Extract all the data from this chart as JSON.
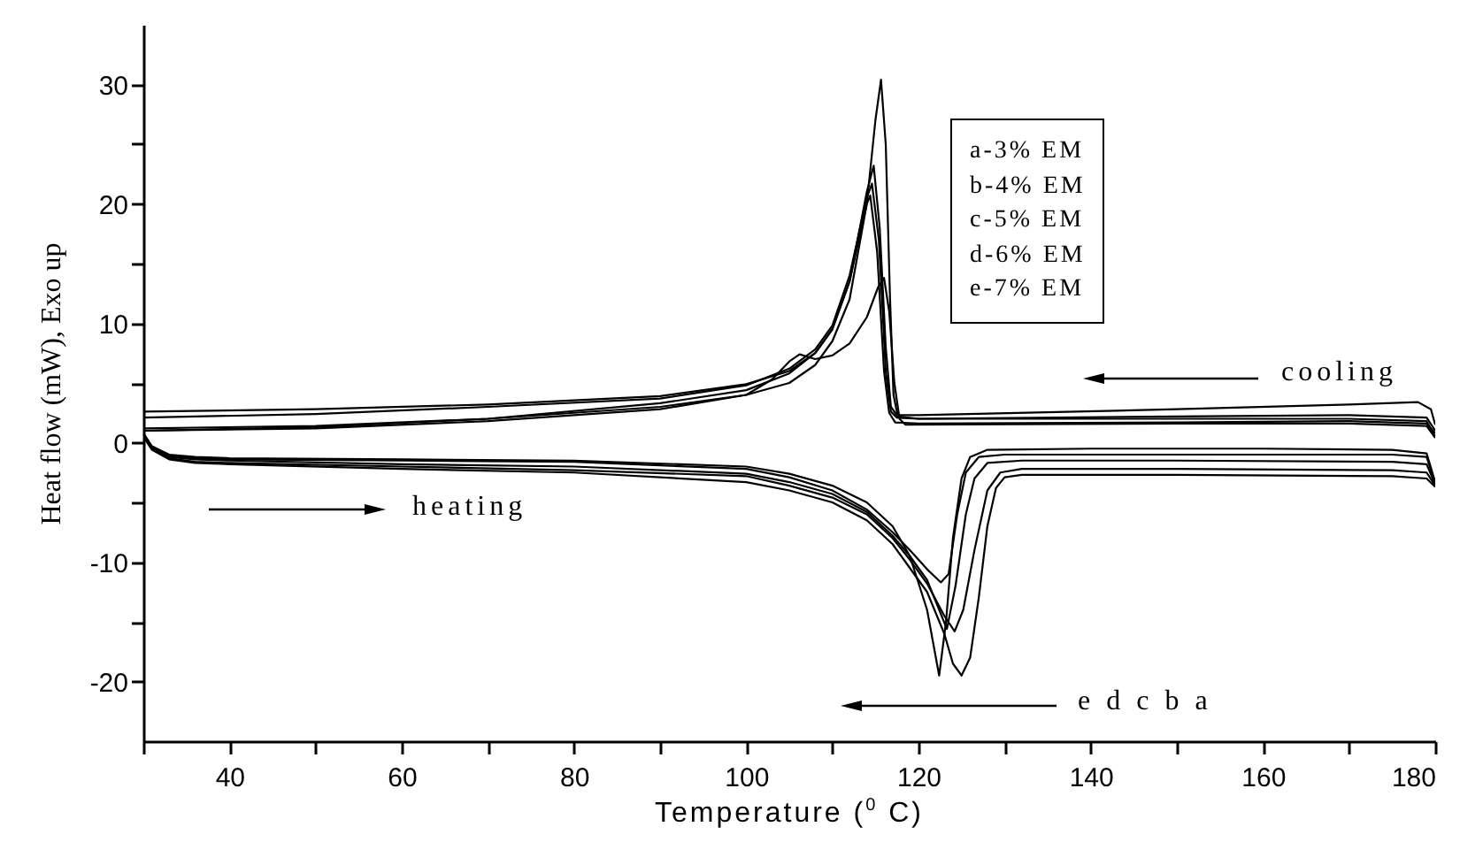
{
  "chart_data": {
    "type": "line",
    "xlabel": "Temperature ($^{0}$ C)",
    "ylabel": "Heat flow (mW), Exo up",
    "xlim": [
      30,
      180
    ],
    "ylim": [
      -25,
      35
    ],
    "xticks": [
      {
        "value": 30,
        "label": null
      },
      40,
      {
        "value": 50,
        "label": null
      },
      60,
      {
        "value": 70,
        "label": null
      },
      80,
      {
        "value": 90,
        "label": null
      },
      100,
      {
        "value": 110,
        "label": null
      },
      120,
      {
        "value": 130,
        "label": null
      },
      140,
      {
        "value": 150,
        "label": null
      },
      160,
      {
        "value": 170,
        "label": null
      },
      180
    ],
    "yticks": [
      -20,
      {
        "value": -15,
        "label": null
      },
      -10,
      {
        "value": -5,
        "label": null
      },
      0,
      {
        "value": 5,
        "label": null
      },
      10,
      {
        "value": 15,
        "label": null
      },
      20,
      {
        "value": 25,
        "label": null
      },
      30
    ],
    "grid": false,
    "marker": "none",
    "line_style": "solid",
    "annotations": [
      "a-3% EM",
      "b-4% EM",
      "c-5% EM",
      "d-6% EM",
      "e-7% EM",
      "cooling",
      "heating",
      "e d c b a"
    ],
    "series": [
      {
        "color": "#000000",
        "x": [
          30,
          31,
          33,
          36,
          40,
          60,
          80,
          100,
          105,
          110,
          114,
          117,
          119,
          121,
          122.4,
          123.2,
          124,
          125,
          126,
          128,
          140,
          160,
          175,
          179,
          180
        ],
        "values": [
          0.8,
          -0.3,
          -1.0,
          -1.2,
          -1.3,
          -1.4,
          -1.5,
          -2.0,
          -2.6,
          -3.6,
          -5.0,
          -7.0,
          -9.5,
          -14.0,
          -19.5,
          -15,
          -8,
          -3,
          -1.2,
          -0.6,
          -0.5,
          -0.5,
          -0.6,
          -0.9,
          -3.3
        ]
      },
      {
        "color": "#000000",
        "x": [
          30,
          31,
          33,
          36,
          40,
          60,
          80,
          100,
          105,
          110,
          114,
          117,
          119,
          121,
          122.6,
          123.5,
          124.5,
          125.5,
          127,
          130,
          150,
          175,
          179,
          180
        ],
        "values": [
          0.7,
          -0.4,
          -1.1,
          -1.3,
          -1.4,
          -1.5,
          -1.6,
          -2.2,
          -2.9,
          -4.0,
          -5.6,
          -7.5,
          -9.0,
          -10.6,
          -11.7,
          -11,
          -6,
          -2.5,
          -1.2,
          -1.0,
          -1.0,
          -1.0,
          -1.2,
          -3.4
        ]
      },
      {
        "color": "#000000",
        "x": [
          30,
          31,
          33,
          36,
          40,
          60,
          80,
          100,
          105,
          110,
          114,
          117,
          119,
          121,
          123.3,
          124.3,
          125.5,
          126.5,
          128,
          132,
          150,
          175,
          179,
          180
        ],
        "values": [
          0.6,
          -0.5,
          -1.2,
          -1.4,
          -1.5,
          -1.8,
          -2.0,
          -2.6,
          -3.3,
          -4.3,
          -5.8,
          -7.8,
          -9.5,
          -11.5,
          -15.6,
          -12,
          -6,
          -3,
          -1.7,
          -1.5,
          -1.5,
          -1.6,
          -1.8,
          -3.5
        ]
      },
      {
        "color": "#000000",
        "x": [
          30,
          31,
          33,
          36,
          40,
          60,
          80,
          100,
          105,
          110,
          114,
          117,
          119,
          121,
          123,
          124.2,
          125.2,
          126.5,
          128,
          129.5,
          132,
          150,
          175,
          179,
          180
        ],
        "values": [
          0.6,
          -0.5,
          -1.3,
          -1.6,
          -1.7,
          -2.0,
          -2.3,
          -2.8,
          -3.6,
          -4.6,
          -6.0,
          -8.0,
          -9.8,
          -11.8,
          -14.5,
          -15.8,
          -14,
          -9,
          -4,
          -2.5,
          -2.2,
          -2.2,
          -2.3,
          -2.5,
          -3.6
        ]
      },
      {
        "color": "#000000",
        "x": [
          30,
          31,
          33,
          36,
          40,
          60,
          80,
          100,
          105,
          110,
          114,
          117,
          119,
          121,
          123,
          124,
          125,
          126,
          127,
          128,
          129,
          130,
          132,
          150,
          175,
          179,
          180
        ],
        "values": [
          0.5,
          -0.6,
          -1.4,
          -1.7,
          -1.8,
          -2.2,
          -2.5,
          -3.3,
          -4.0,
          -5.0,
          -6.5,
          -8.5,
          -10.5,
          -12.5,
          -16,
          -18.5,
          -19.5,
          -18,
          -13,
          -7,
          -3.8,
          -2.9,
          -2.7,
          -2.7,
          -2.8,
          -3.0,
          -3.7
        ]
      },
      {
        "color": "#000000",
        "x": [
          30,
          50,
          70,
          90,
          100,
          105,
          108,
          110,
          112,
          114,
          115,
          115.65,
          116.2,
          116.7,
          117.1,
          117.6,
          120,
          150,
          170,
          179,
          180
        ],
        "values": [
          1.2,
          1.4,
          2.0,
          3.0,
          4.0,
          5.0,
          6.5,
          8.5,
          12,
          20,
          27,
          30.4,
          25,
          12,
          4,
          2.2,
          2.0,
          2.0,
          2.0,
          1.8,
          0.5
        ]
      },
      {
        "color": "#000000",
        "x": [
          30,
          50,
          70,
          90,
          100,
          105,
          108,
          110,
          112,
          114,
          114.8,
          115.5,
          116.2,
          116.8,
          117.5,
          120,
          150,
          170,
          178,
          179.5,
          180
        ],
        "values": [
          2.6,
          2.8,
          3.2,
          3.9,
          4.9,
          6.0,
          7.5,
          9.5,
          13.5,
          21,
          23.2,
          18,
          8,
          3,
          2.3,
          2.3,
          2.8,
          3.2,
          3.4,
          2.8,
          1.5
        ]
      },
      {
        "color": "#000000",
        "x": [
          30,
          50,
          70,
          90,
          100,
          105,
          108,
          110,
          112,
          114,
          114.6,
          115.4,
          116.2,
          116.8,
          117.5,
          120,
          150,
          170,
          179,
          180
        ],
        "values": [
          2.1,
          2.4,
          3.0,
          3.7,
          4.8,
          6.2,
          7.8,
          9.8,
          14,
          20.5,
          21.7,
          17,
          6,
          2.6,
          2.1,
          2.0,
          2.2,
          2.3,
          2.1,
          1.0
        ]
      },
      {
        "color": "#000000",
        "x": [
          30,
          50,
          70,
          90,
          100,
          105,
          108,
          110,
          112,
          114,
          114.4,
          115.2,
          116,
          116.6,
          117.3,
          120,
          150,
          170,
          179,
          180
        ],
        "values": [
          1.0,
          1.3,
          2.0,
          3.3,
          4.4,
          5.8,
          7.5,
          9.5,
          13.5,
          20,
          20.7,
          16,
          6,
          2.5,
          1.7,
          1.6,
          1.7,
          1.8,
          1.6,
          0.8
        ]
      },
      {
        "color": "#000000",
        "x": [
          30,
          50,
          70,
          90,
          100,
          103,
          105,
          106.2,
          108,
          110,
          112,
          114,
          115.3,
          116,
          116.6,
          117.2,
          117.8,
          118.5,
          150,
          170,
          179,
          180
        ],
        "values": [
          1.0,
          1.2,
          1.8,
          2.8,
          4.0,
          5.3,
          6.8,
          7.4,
          7.0,
          7.3,
          8.3,
          10.5,
          13,
          13.8,
          11,
          5,
          2,
          1.5,
          1.6,
          1.6,
          1.4,
          0.4
        ]
      }
    ]
  }
}
